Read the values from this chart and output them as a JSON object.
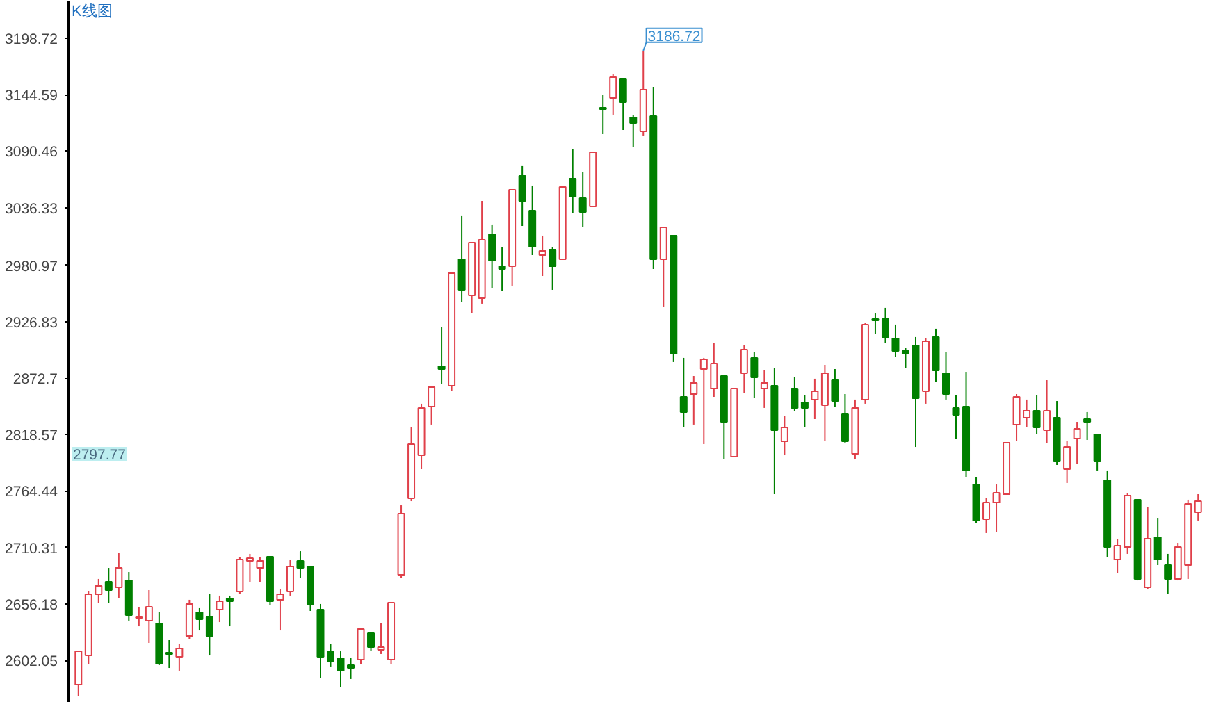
{
  "chart_data": {
    "type": "candlestick",
    "title": "K线图",
    "categories": [
      null,
      null,
      null,
      null,
      null,
      null,
      null,
      null,
      null,
      null,
      null,
      null,
      null,
      null,
      null,
      null,
      null,
      null,
      null,
      null,
      null,
      null,
      null,
      null,
      null,
      null,
      null,
      null,
      null,
      null,
      null,
      null,
      null,
      null,
      null,
      null,
      null,
      null,
      null,
      null,
      null,
      null,
      null,
      null,
      null,
      null,
      null,
      null,
      null,
      null,
      null,
      null,
      null,
      null,
      null,
      null,
      null,
      null,
      null,
      null,
      null,
      null,
      null,
      null,
      null,
      null,
      null,
      null,
      null,
      null,
      null,
      null,
      null,
      null,
      null,
      null,
      null,
      null,
      null,
      null,
      null,
      null,
      null,
      null,
      null,
      null,
      null,
      null,
      null,
      null,
      null,
      null,
      null,
      null,
      null,
      null,
      null,
      null,
      null,
      null,
      null,
      null,
      null,
      null,
      null,
      null,
      null,
      null,
      null,
      null,
      null,
      null
    ],
    "ohlc": [
      [
        2578.7,
        2610.7,
        2568.0,
        2610.7
      ],
      [
        2606.7,
        2668.1,
        2598.7,
        2665.4
      ],
      [
        2665.4,
        2680.1,
        2657.4,
        2673.4
      ],
      [
        2677.4,
        2690.7,
        2657.4,
        2669.4
      ],
      [
        2672.1,
        2705.4,
        2661.4,
        2690.7
      ],
      [
        2678.7,
        2686.7,
        2640.1,
        2645.4
      ],
      [
        2642.7,
        2653.4,
        2634.7,
        2644.1
      ],
      [
        2640.1,
        2669.4,
        2618.7,
        2653.4
      ],
      [
        2637.4,
        2648.1,
        2597.4,
        2598.7
      ],
      [
        2609.4,
        2621.4,
        2594.7,
        2608.1
      ],
      [
        2605.4,
        2617.4,
        2592.1,
        2613.4
      ],
      [
        2625.4,
        2660.1,
        2622.7,
        2656.1
      ],
      [
        2648.1,
        2652.1,
        2630.7,
        2641.4
      ],
      [
        2644.1,
        2665.4,
        2606.7,
        2625.4
      ],
      [
        2650.7,
        2664.1,
        2638.7,
        2658.7
      ],
      [
        2661.4,
        2664.1,
        2634.7,
        2658.7
      ],
      [
        2668.1,
        2701.4,
        2665.4,
        2698.7
      ],
      [
        2697.4,
        2704.1,
        2677.4,
        2700.1
      ],
      [
        2690.7,
        2701.4,
        2677.4,
        2697.4
      ],
      [
        2701.4,
        2701.4,
        2654.7,
        2658.7
      ],
      [
        2660.1,
        2670.7,
        2630.7,
        2665.4
      ],
      [
        2668.1,
        2698.7,
        2664.1,
        2692.1
      ],
      [
        2697.4,
        2706.7,
        2681.4,
        2690.7
      ],
      [
        2692.1,
        2692.1,
        2649.4,
        2656.1
      ],
      [
        2650.7,
        2656.1,
        2585.4,
        2605.4
      ],
      [
        2610.7,
        2617.4,
        2596.1,
        2601.4
      ],
      [
        2604.1,
        2610.7,
        2576.1,
        2592.1
      ],
      [
        2597.4,
        2604.1,
        2584.1,
        2594.7
      ],
      [
        2602.7,
        2632.1,
        2598.7,
        2632.1
      ],
      [
        2628.1,
        2628.1,
        2610.7,
        2614.7
      ],
      [
        2612.1,
        2637.4,
        2608.1,
        2614.7
      ],
      [
        2602.7,
        2657.4,
        2598.7,
        2657.4
      ],
      [
        2684.1,
        2750.7,
        2681.4,
        2742.7
      ],
      [
        2757.4,
        2825.4,
        2754.7,
        2809.4
      ],
      [
        2798.7,
        2848.1,
        2785.4,
        2844.1
      ],
      [
        2845.4,
        2865.4,
        2828.1,
        2864.1
      ],
      [
        2884.1,
        2921.4,
        2866.7,
        2881.4
      ],
      [
        2865.4,
        2973.4,
        2860.1,
        2973.4
      ],
      [
        2986.7,
        3028.1,
        2945.4,
        2957.4
      ],
      [
        2952.1,
        3002.7,
        2934.7,
        3002.7
      ],
      [
        2949.4,
        3042.7,
        2944.1,
        3005.4
      ],
      [
        3010.7,
        3020.1,
        2958.7,
        2985.4
      ],
      [
        2980.1,
        2998.1,
        2956.1,
        2977.4
      ],
      [
        2980.1,
        3053.4,
        2961.4,
        3053.4
      ],
      [
        3066.7,
        3076.1,
        3018.7,
        3042.7
      ],
      [
        3033.4,
        3057.4,
        2990.7,
        2998.7
      ],
      [
        2990.7,
        3009.4,
        2970.7,
        2994.7
      ],
      [
        2996.1,
        2998.7,
        2957.4,
        2980.1
      ],
      [
        2986.7,
        3056.1,
        2986.7,
        3056.1
      ],
      [
        3064.1,
        3092.1,
        3030.7,
        3046.7
      ],
      [
        3045.4,
        3070.7,
        3017.4,
        3032.1
      ],
      [
        3037.4,
        3089.4,
        3037.4,
        3089.4
      ],
      [
        3132.1,
        3144.1,
        3106.7,
        3130.7
      ],
      [
        3141.4,
        3164.1,
        3125.4,
        3161.4
      ],
      [
        3160.1,
        3160.1,
        3110.7,
        3137.4
      ],
      [
        3122.7,
        3125.4,
        3094.7,
        3117.4
      ],
      [
        3109.4,
        3186.72,
        3105.4,
        3149.4
      ],
      [
        3124.1,
        3152.1,
        2977.4,
        2986.7
      ],
      [
        2986.7,
        3017.4,
        2941.4,
        3017.4
      ],
      [
        3009.4,
        3009.4,
        2888.1,
        2896.1
      ],
      [
        2854.7,
        2892.1,
        2825.4,
        2840.1
      ],
      [
        2857.4,
        2874.7,
        2828.1,
        2868.1
      ],
      [
        2881.4,
        2892.1,
        2809.4,
        2890.7
      ],
      [
        2862.7,
        2906.7,
        2854.7,
        2886.7
      ],
      [
        2874.7,
        2874.7,
        2794.7,
        2830.7
      ],
      [
        2797.4,
        2862.7,
        2797.4,
        2862.7
      ],
      [
        2877.4,
        2904.1,
        2858.7,
        2900.1
      ],
      [
        2892.1,
        2897.4,
        2853.4,
        2873.4
      ],
      [
        2862.7,
        2880.1,
        2844.1,
        2868.1
      ],
      [
        2865.4,
        2882.7,
        2761.4,
        2822.7
      ],
      [
        2812.1,
        2836.1,
        2798.7,
        2825.4
      ],
      [
        2862.7,
        2873.4,
        2841.4,
        2844.1
      ],
      [
        2849.4,
        2856.1,
        2825.4,
        2844.1
      ],
      [
        2852.1,
        2872.1,
        2833.4,
        2860.1
      ],
      [
        2846.7,
        2885.4,
        2812.1,
        2877.4
      ],
      [
        2870.7,
        2881.4,
        2845.4,
        2850.7
      ],
      [
        2838.7,
        2857.4,
        2810.7,
        2812.1
      ],
      [
        2800.1,
        2852.1,
        2794.7,
        2844.1
      ],
      [
        2852.1,
        2925.4,
        2848.1,
        2924.1
      ],
      [
        2929.4,
        2934.7,
        2914.7,
        2928.1
      ],
      [
        2929.4,
        2940.1,
        2906.7,
        2912.1
      ],
      [
        2910.7,
        2924.1,
        2893.4,
        2898.7
      ],
      [
        2898.7,
        2901.4,
        2882.7,
        2896.1
      ],
      [
        2904.1,
        2912.1,
        2806.7,
        2853.4
      ],
      [
        2860.1,
        2910.7,
        2848.1,
        2908.1
      ],
      [
        2912.1,
        2920.1,
        2869.4,
        2880.1
      ],
      [
        2877.4,
        2897.4,
        2852.1,
        2857.4
      ],
      [
        2844.1,
        2856.1,
        2814.7,
        2837.4
      ],
      [
        2845.4,
        2878.7,
        2777.4,
        2784.1
      ],
      [
        2770.7,
        2777.4,
        2733.4,
        2736.1
      ],
      [
        2737.4,
        2757.4,
        2724.1,
        2753.4
      ],
      [
        2753.4,
        2770.7,
        2725.4,
        2762.7
      ],
      [
        2761.4,
        2810.7,
        2761.4,
        2810.7
      ],
      [
        2828.1,
        2857.4,
        2812.1,
        2854.7
      ],
      [
        2834.7,
        2852.1,
        2825.4,
        2841.4
      ],
      [
        2841.4,
        2856.1,
        2818.7,
        2825.4
      ],
      [
        2822.7,
        2870.7,
        2810.7,
        2841.4
      ],
      [
        2834.7,
        2850.7,
        2789.4,
        2793.4
      ],
      [
        2785.4,
        2812.1,
        2772.1,
        2806.7
      ],
      [
        2814.7,
        2830.7,
        2790.7,
        2824.1
      ],
      [
        2833.4,
        2840.1,
        2813.4,
        2830.7
      ],
      [
        2818.7,
        2818.7,
        2784.1,
        2793.4
      ],
      [
        2774.7,
        2784.1,
        2701.4,
        2710.7
      ],
      [
        2698.7,
        2718.7,
        2685.4,
        2712.1
      ],
      [
        2710.7,
        2762.7,
        2704.1,
        2760.1
      ],
      [
        2756.1,
        2756.1,
        2678.7,
        2680.1
      ],
      [
        2672.1,
        2749.4,
        2670.7,
        2718.7
      ],
      [
        2720.1,
        2738.7,
        2693.4,
        2698.7
      ],
      [
        2693.4,
        2704.1,
        2665.4,
        2680.1
      ],
      [
        2680.1,
        2714.7,
        2678.7,
        2710.7
      ],
      [
        2693.4,
        2756.1,
        2680.1,
        2752.1
      ],
      [
        2744.1,
        2761.4,
        2736.1,
        2754.7
      ]
    ],
    "colors": [
      "#e0404a",
      "#e0404a",
      "#e0404a",
      "#008000",
      "#e0404a",
      "#008000",
      "#e0404a",
      "#e0404a",
      "#008000",
      "#008000",
      "#e0404a",
      "#e0404a",
      "#008000",
      "#008000",
      "#e0404a",
      "#008000",
      "#e0404a",
      "#e0404a",
      "#e0404a",
      "#008000",
      "#e0404a",
      "#e0404a",
      "#008000",
      "#008000",
      "#008000",
      "#008000",
      "#008000",
      "#008000",
      "#e0404a",
      "#008000",
      "#e0404a",
      "#e0404a",
      "#e0404a",
      "#e0404a",
      "#e0404a",
      "#e0404a",
      "#008000",
      "#e0404a",
      "#008000",
      "#e0404a",
      "#e0404a",
      "#008000",
      "#008000",
      "#e0404a",
      "#008000",
      "#008000",
      "#e0404a",
      "#008000",
      "#e0404a",
      "#008000",
      "#008000",
      "#e0404a",
      "#008000",
      "#e0404a",
      "#008000",
      "#008000",
      "#e0404a",
      "#008000",
      "#e0404a",
      "#008000",
      "#008000",
      "#e0404a",
      "#e0404a",
      "#e0404a",
      "#008000",
      "#e0404a",
      "#e0404a",
      "#008000",
      "#e0404a",
      "#008000",
      "#e0404a",
      "#008000",
      "#008000",
      "#e0404a",
      "#e0404a",
      "#008000",
      "#008000",
      "#e0404a",
      "#e0404a",
      "#008000",
      "#008000",
      "#008000",
      "#008000",
      "#008000",
      "#e0404a",
      "#008000",
      "#008000",
      "#008000",
      "#008000",
      "#008000",
      "#e0404a",
      "#e0404a",
      "#e0404a",
      "#e0404a",
      "#e0404a",
      "#008000",
      "#e0404a",
      "#008000",
      "#e0404a",
      "#e0404a",
      "#008000",
      "#008000",
      "#008000",
      "#e0404a",
      "#e0404a",
      "#008000",
      "#e0404a",
      "#008000",
      "#008000",
      "#e0404a",
      "#e0404a",
      "#e0404a"
    ],
    "ylim": [
      2561.4,
      3234.7
    ],
    "yticks": [
      2602.05,
      2656.18,
      2710.31,
      2764.44,
      2818.57,
      2872.7,
      2926.83,
      2980.97,
      3036.33,
      3090.46,
      3144.59,
      3198.72
    ],
    "annotations": [
      "3186.72",
      "2797.77"
    ],
    "grid": false
  }
}
